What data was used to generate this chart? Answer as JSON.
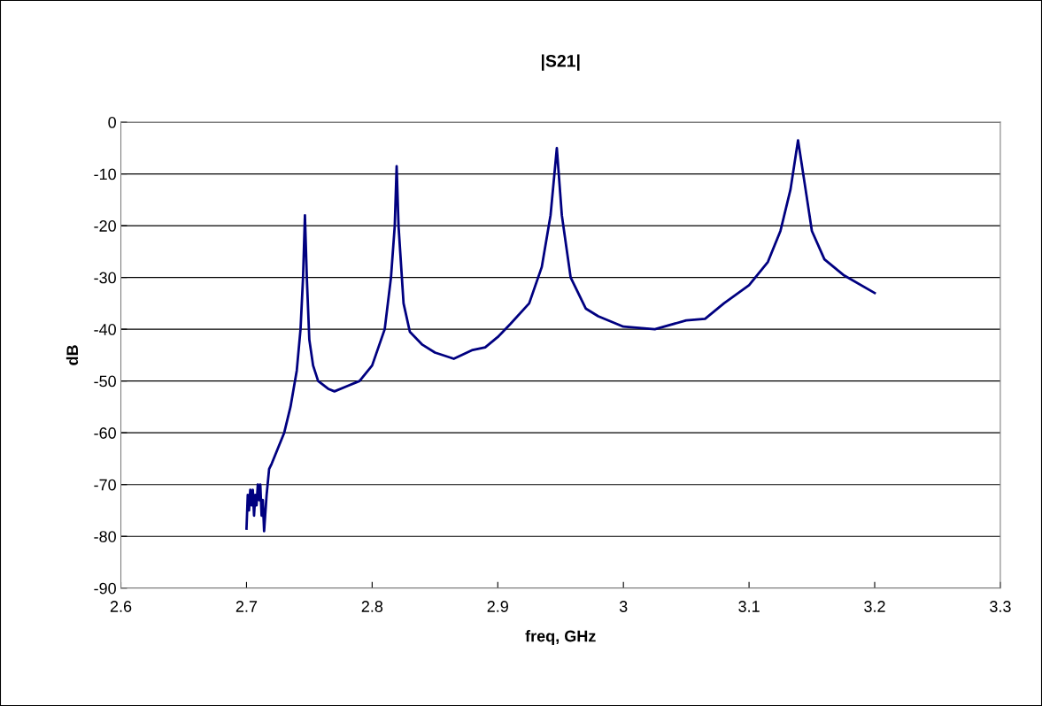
{
  "chart_data": {
    "type": "line",
    "title": "|S21|",
    "xlabel": "freq, GHz",
    "ylabel": "dB",
    "xlim": [
      2.6,
      3.3
    ],
    "xticks": [
      2.6,
      2.7,
      2.8,
      2.9,
      3,
      3.1,
      3.2,
      3.3
    ],
    "ylim": [
      -90,
      0
    ],
    "yticks": [
      -90,
      -80,
      -70,
      -60,
      -50,
      -40,
      -30,
      -20,
      -10,
      0
    ],
    "grid": "y",
    "legend": false,
    "marker": "none",
    "line_style": "solid",
    "series": [
      {
        "color": "#000080",
        "x": [
          2.7,
          2.701,
          2.702,
          2.703,
          2.704,
          2.705,
          2.706,
          2.707,
          2.708,
          2.709,
          2.71,
          2.711,
          2.712,
          2.713,
          2.714,
          2.716,
          2.718,
          2.72,
          2.725,
          2.73,
          2.735,
          2.74,
          2.743,
          2.745,
          2.746,
          2.7465,
          2.748,
          2.75,
          2.753,
          2.757,
          2.765,
          2.77,
          2.78,
          2.79,
          2.8,
          2.81,
          2.815,
          2.818,
          2.8195,
          2.821,
          2.825,
          2.83,
          2.84,
          2.85,
          2.865,
          2.88,
          2.89,
          2.9,
          2.91,
          2.925,
          2.935,
          2.942,
          2.947,
          2.951,
          2.958,
          2.97,
          2.98,
          3.0,
          3.025,
          3.05,
          3.065,
          3.08,
          3.1,
          3.115,
          3.125,
          3.133,
          3.139,
          3.145,
          3.15,
          3.16,
          3.175,
          3.2
        ],
        "values": [
          -78.5,
          -72,
          -75,
          -71,
          -74,
          -71,
          -76,
          -72,
          -74,
          -70,
          -73,
          -70,
          -76,
          -73,
          -79,
          -72,
          -67,
          -66,
          -63,
          -60,
          -55,
          -48,
          -40,
          -30,
          -22,
          -18,
          -30,
          -42,
          -47,
          -50,
          -51.5,
          -52,
          -51,
          -50,
          -47,
          -40,
          -30,
          -20,
          -8.5,
          -20,
          -35,
          -40.5,
          -43,
          -44.5,
          -45.7,
          -44,
          -43.5,
          -41.5,
          -39,
          -35,
          -28,
          -18,
          -5,
          -18,
          -30,
          -36,
          -37.5,
          -39.5,
          -40,
          -38.3,
          -38,
          -35,
          -31.5,
          -27,
          -21,
          -13,
          -3.5,
          -13,
          -21,
          -26.5,
          -29.5,
          -33
        ]
      }
    ]
  }
}
